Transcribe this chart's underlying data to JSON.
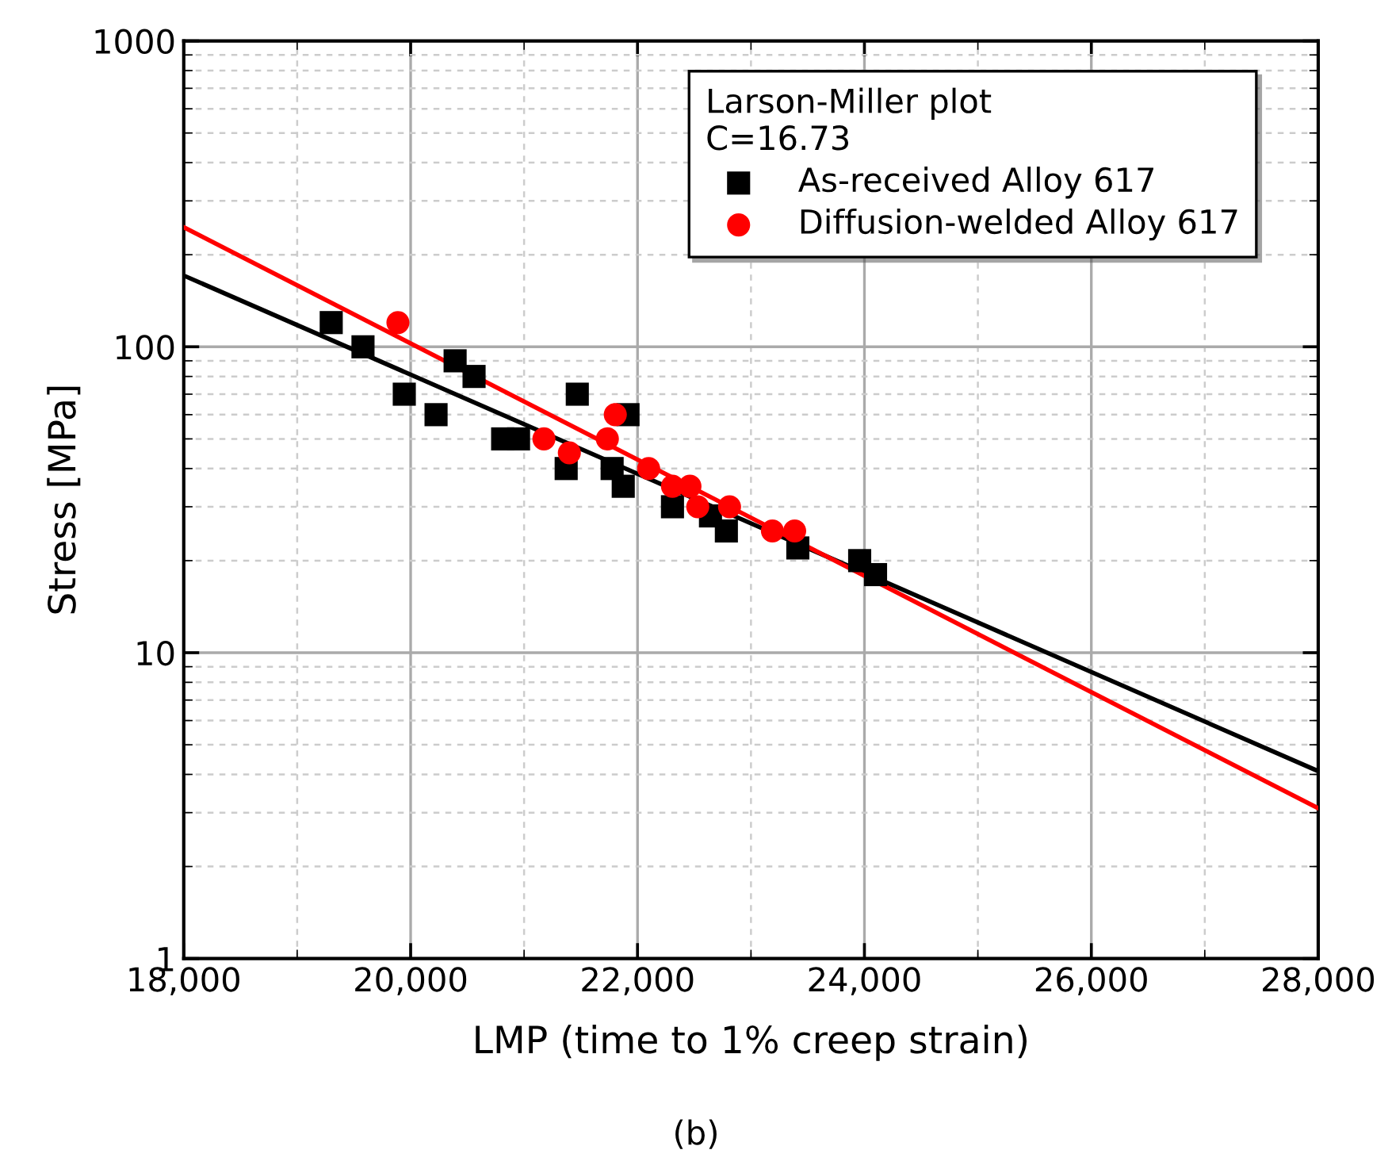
{
  "chart_data": {
    "type": "scatter",
    "xlabel": "LMP (time to 1% creep strain)",
    "ylabel": "Stress [MPa]",
    "legend_title": "Larson-Miller plot\nC=16.73",
    "annotations": [
      "(b)"
    ],
    "xlim": [
      18000,
      28000
    ],
    "ylim": [
      1,
      1000
    ],
    "log": "y",
    "grid": true,
    "legend": "top right",
    "xticks": [
      {
        "value": 18000,
        "label": "18,000"
      },
      {
        "value": 20000,
        "label": "20,000"
      },
      {
        "value": 22000,
        "label": "22,000"
      },
      {
        "value": 24000,
        "label": "24,000"
      },
      {
        "value": 26000,
        "label": "26,000"
      },
      {
        "value": 28000,
        "label": "28,000"
      }
    ],
    "yticks": [
      1,
      10,
      100,
      1000
    ],
    "series": [
      {
        "name": "As-received Alloy 617",
        "color": "#000000",
        "marker": "square",
        "x": [
          19300,
          19580,
          19944,
          20392,
          20559,
          20224,
          20811,
          20951,
          21469,
          21371,
          21916,
          21776,
          21874,
          22308,
          22643,
          22783,
          23413,
          23958,
          24098
        ],
        "values": [
          120,
          100,
          70,
          90,
          80,
          60,
          50,
          50,
          70,
          40,
          60,
          40,
          35,
          30,
          28,
          25,
          22,
          20,
          18
        ]
      },
      {
        "name": "Diffusion-welded Alloy 617",
        "color": "#ff0000",
        "marker": "circle",
        "x": [
          19888,
          21175,
          21399,
          21734,
          21804,
          22098,
          22308,
          22462,
          22531,
          22811,
          23189,
          23385
        ],
        "values": [
          120,
          50,
          45,
          50,
          60,
          40,
          35,
          35,
          30,
          30,
          25,
          25
        ]
      },
      {
        "type": "line",
        "color": "#000000",
        "marker": "none",
        "line_style": "solid",
        "x": [
          18000,
          28000
        ],
        "values": [
          171,
          4.1
        ]
      },
      {
        "type": "line",
        "color": "#ff0000",
        "marker": "none",
        "line_style": "solid",
        "x": [
          18000,
          28000
        ],
        "values": [
          246,
          3.1
        ]
      }
    ]
  }
}
